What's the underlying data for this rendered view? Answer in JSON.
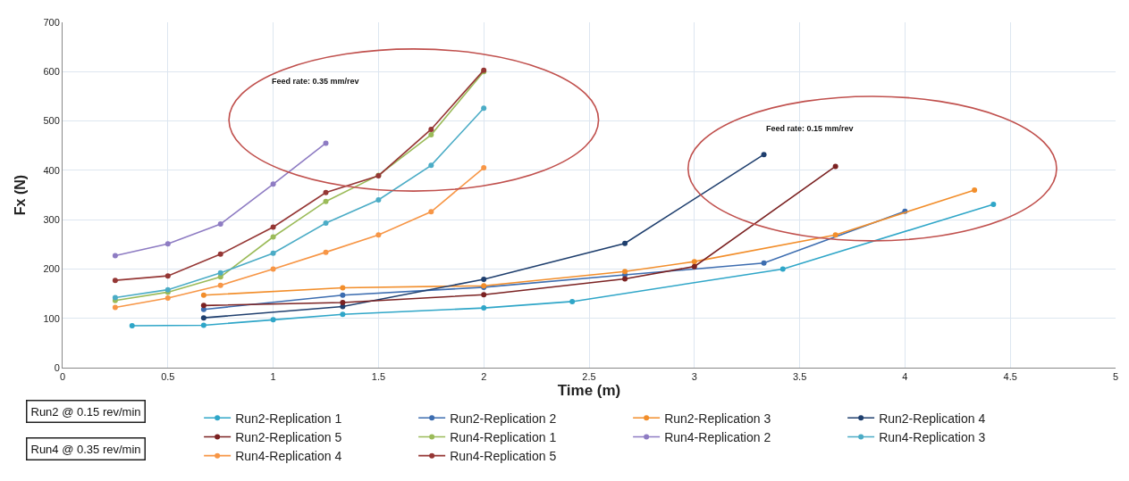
{
  "chart_data": {
    "type": "line",
    "xlabel": "Time (m)",
    "ylabel": "Fx (N)",
    "xlim": [
      0,
      5
    ],
    "xticks": [
      0,
      0.5,
      1,
      1.5,
      2,
      2.5,
      3,
      3.5,
      4,
      4.5,
      5
    ],
    "ylim": [
      0,
      700
    ],
    "yticks": [
      0,
      100,
      200,
      300,
      400,
      500,
      600,
      700
    ],
    "grid": true,
    "legend": "bottom",
    "marker": "circle",
    "line_style": "solid",
    "annotations": [
      "Feed rate: 0.35 mm/rev",
      "Feed rate: 0.15 mm/rev",
      "Run2 @ 0.15 rev/min",
      "Run4 @ 0.35 rev/min"
    ],
    "series": [
      {
        "name": "Run2-Replication 1",
        "color": "#2fa6c8",
        "x": [
          0.33,
          0.67,
          1,
          1.33,
          2,
          2.42,
          3.42,
          4.42
        ],
        "values": [
          85,
          86,
          97,
          108,
          121,
          134,
          200,
          331
        ]
      },
      {
        "name": "Run2-Replication 2",
        "color": "#3d6db0",
        "x": [
          0.67,
          1.33,
          2,
          2.67,
          3.33,
          4
        ],
        "values": [
          118,
          147,
          163,
          188,
          212,
          317
        ]
      },
      {
        "name": "Run2-Replication 3",
        "color": "#f28e2b",
        "x": [
          0.67,
          1.33,
          2,
          2.67,
          3,
          3.67,
          4.33
        ],
        "values": [
          147,
          162,
          166,
          195,
          215,
          269,
          360
        ]
      },
      {
        "name": "Run2-Replication 4",
        "color": "#1f3f6e",
        "x": [
          0.67,
          1.33,
          2,
          2.67,
          3.33
        ],
        "values": [
          101,
          124,
          179,
          252,
          432
        ]
      },
      {
        "name": "Run2-Replication 5",
        "color": "#7b2222",
        "x": [
          0.67,
          1.33,
          2,
          2.67,
          3,
          3.67
        ],
        "values": [
          126,
          132,
          148,
          180,
          205,
          408
        ]
      },
      {
        "name": "Run4-Replication 1",
        "color": "#9bbb59",
        "x": [
          0.25,
          0.5,
          0.75,
          1,
          1.25,
          1.5,
          1.75,
          2
        ],
        "values": [
          136,
          153,
          184,
          265,
          337,
          390,
          472,
          600
        ]
      },
      {
        "name": "Run4-Replication 2",
        "color": "#8e7cc3",
        "x": [
          0.25,
          0.5,
          0.75,
          1,
          1.25
        ],
        "values": [
          227,
          251,
          291,
          372,
          455
        ]
      },
      {
        "name": "Run4-Replication 3",
        "color": "#4bacc6",
        "x": [
          0.25,
          0.5,
          0.75,
          1,
          1.25,
          1.5,
          1.75,
          2
        ],
        "values": [
          142,
          158,
          192,
          232,
          293,
          340,
          410,
          526
        ]
      },
      {
        "name": "Run4-Replication 4",
        "color": "#f79646",
        "x": [
          0.25,
          0.5,
          0.75,
          1,
          1.25,
          1.5,
          1.75,
          2
        ],
        "values": [
          122,
          141,
          167,
          200,
          234,
          269,
          316,
          405
        ]
      },
      {
        "name": "Run4-Replication 5",
        "color": "#953735",
        "x": [
          0.25,
          0.5,
          0.75,
          1,
          1.25,
          1.5,
          1.75,
          2
        ],
        "values": [
          177,
          186,
          230,
          285,
          355,
          389,
          483,
          603
        ]
      }
    ]
  }
}
